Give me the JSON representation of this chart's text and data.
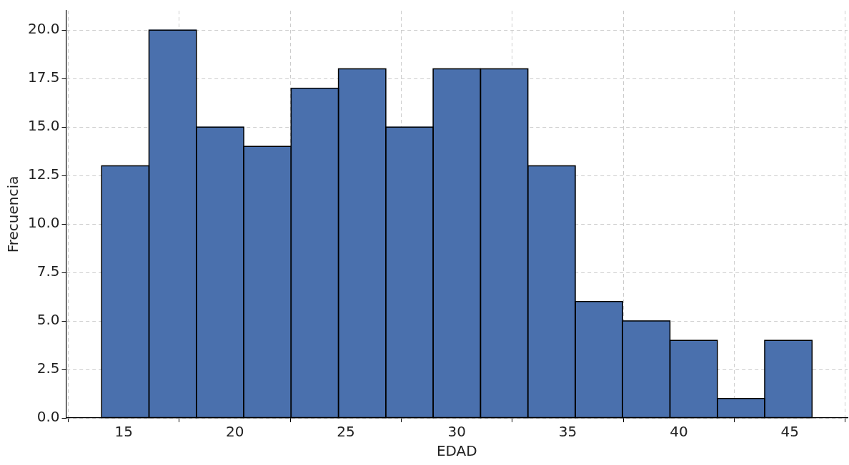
{
  "chart_data": {
    "type": "histogram",
    "xlabel": "EDAD",
    "ylabel": "Frecuencia",
    "bins": [
      14,
      16.133,
      18.267,
      20.4,
      22.533,
      24.667,
      26.8,
      28.933,
      31.067,
      33.2,
      35.333,
      37.467,
      39.6,
      41.733,
      43.867,
      46
    ],
    "values": [
      13,
      20,
      15,
      14,
      17,
      18,
      15,
      18,
      18,
      13,
      6,
      5,
      4,
      1,
      4
    ],
    "color": "#4a70ad",
    "xlim": [
      12.4,
      47.6
    ],
    "xticks": [
      15,
      20,
      25,
      30,
      35,
      40,
      45
    ],
    "ylim": [
      0,
      21
    ],
    "yticks": [
      {
        "value": 0,
        "label": "0.0"
      },
      {
        "value": 2.5,
        "label": "2.5"
      },
      {
        "value": 5,
        "label": "5.0"
      },
      {
        "value": 7.5,
        "label": "7.5"
      },
      {
        "value": 10,
        "label": "10.0"
      },
      {
        "value": 12.5,
        "label": "12.5"
      },
      {
        "value": 15,
        "label": "15.0"
      },
      {
        "value": 17.5,
        "label": "17.5"
      },
      {
        "value": 20,
        "label": "20.0"
      }
    ],
    "grid": true,
    "legend": false
  }
}
